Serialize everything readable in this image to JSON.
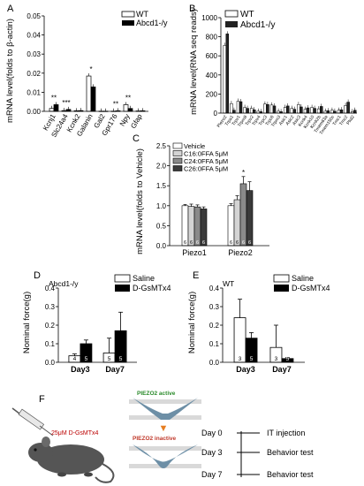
{
  "panels": {
    "A": {
      "letter": "A",
      "ylabel": "mRNA level(folds to β-actin)",
      "yticks": [
        "0.00",
        "0.01",
        "0.02",
        "0.03",
        "0.04",
        "0.05"
      ],
      "legend": [
        "WT",
        "Abcd1-/y"
      ],
      "stars": [
        "**",
        "***",
        "*",
        "**",
        "**"
      ]
    },
    "B": {
      "letter": "B",
      "ylabel": "mRNA level(RNA seq reads)",
      "yticks": [
        "0",
        "200",
        "400",
        "600",
        "800",
        "1000"
      ],
      "legend": [
        "WT",
        "Abcd1-/y"
      ],
      "stars": [
        "**"
      ]
    },
    "C": {
      "letter": "C",
      "ylabel": "mRNA level(folds to Vehicle)",
      "yticks": [
        "0.0",
        "0.5",
        "1.0",
        "1.5",
        "2.0",
        "2.5"
      ],
      "legend": [
        "Vehicle",
        "C16:0FFA 5μM",
        "C24:0FFA 5μM",
        "C26:0FFA 5μM"
      ],
      "stars": [
        "*"
      ],
      "n_labels": [
        "6",
        "6",
        "6",
        "6",
        "6",
        "6",
        "6",
        "6"
      ]
    },
    "D": {
      "letter": "D",
      "subtitle": "Abcd1-/y",
      "ylabel": "Nominal force(g)",
      "yticks": [
        "0.0",
        "0.1",
        "0.2",
        "0.3",
        "0.4"
      ],
      "legend": [
        "Saline",
        "D-GsMTx4"
      ],
      "n_labels": [
        "4",
        "5",
        "5",
        "5"
      ]
    },
    "E": {
      "letter": "E",
      "subtitle": "WT",
      "ylabel": "Nominal force(g)",
      "yticks": [
        "0.0",
        "0.1",
        "0.2",
        "0.3",
        "0.4"
      ],
      "legend": [
        "Saline",
        "D-GsMTx4"
      ],
      "n_labels": [
        "3",
        "5",
        "3",
        "5"
      ]
    },
    "F": {
      "letter": "F",
      "dose": "25μM D-GsMTx4",
      "active": "PIEZO2 active",
      "inactive": "PIEZO2 inactive",
      "timeline": [
        {
          "day": "Day 0",
          "event": "IT injection"
        },
        {
          "day": "Day 3",
          "event": "Behavior test"
        },
        {
          "day": "Day 7",
          "event": "Behavior test"
        }
      ]
    }
  },
  "chart_data": [
    {
      "panel": "A",
      "type": "bar",
      "categories": [
        "Kcnj1",
        "Slc24a4",
        "Kcnk2",
        "Galanin",
        "Gal2",
        "Gpr176",
        "Npy",
        "Gfap"
      ],
      "series": [
        {
          "name": "WT",
          "values": [
            0.0015,
            0.0004,
            0.0003,
            0.0185,
            0.0001,
            0.0001,
            0.0035,
            0.0002
          ]
        },
        {
          "name": "Abcd1-/y",
          "values": [
            0.0035,
            0.001,
            0.0004,
            0.0128,
            0.0001,
            0.0003,
            0.0015,
            0.0003
          ]
        }
      ],
      "ylim": [
        0,
        0.05
      ]
    },
    {
      "panel": "B",
      "type": "bar",
      "categories": [
        "Piezo2",
        "Trpa1",
        "Trpv1",
        "Trpm8",
        "Trpv2",
        "Trpv4",
        "Trpc3",
        "Trpc6",
        "Trpm3",
        "Asic1",
        "Asic2",
        "Asic3",
        "Kcnk4",
        "Kcnk10",
        "Kcnk2b",
        "Tmem63a",
        "Tmem150c",
        "Tmc1",
        "Tmc2",
        "Pkd2"
      ],
      "series": [
        {
          "name": "WT",
          "values": [
            710,
            100,
            125,
            60,
            50,
            20,
            95,
            85,
            20,
            60,
            50,
            90,
            40,
            60,
            45,
            20,
            30,
            30,
            80,
            15
          ]
        },
        {
          "name": "Abcd1-/y",
          "values": [
            830,
            30,
            120,
            50,
            35,
            15,
            90,
            75,
            15,
            75,
            40,
            65,
            55,
            50,
            70,
            25,
            20,
            35,
            115,
            30
          ]
        }
      ],
      "ylim": [
        0,
        1000
      ]
    },
    {
      "panel": "C",
      "type": "bar",
      "categories": [
        "Piezo1",
        "Piezo2"
      ],
      "series": [
        {
          "name": "Vehicle",
          "values": [
            1.0,
            1.0
          ]
        },
        {
          "name": "C16:0FFA 5μM",
          "values": [
            0.98,
            1.15
          ]
        },
        {
          "name": "C24:0FFA 5μM",
          "values": [
            0.97,
            1.55
          ]
        },
        {
          "name": "C26:0FFA 5μM",
          "values": [
            0.92,
            1.38
          ]
        }
      ],
      "errors": [
        [
          0.03,
          0.05
        ],
        [
          0.06,
          0.1
        ],
        [
          0.05,
          0.18
        ],
        [
          0.05,
          0.22
        ]
      ],
      "ylim": [
        0,
        2.5
      ]
    },
    {
      "panel": "D",
      "type": "bar",
      "categories": [
        "Day3",
        "Day7"
      ],
      "series": [
        {
          "name": "Saline",
          "values": [
            0.035,
            0.05
          ]
        },
        {
          "name": "D-GsMTx4",
          "values": [
            0.1,
            0.17
          ]
        }
      ],
      "errors": [
        [
          0.01,
          0.02
        ],
        [
          0.08,
          0.1
        ]
      ],
      "ylim": [
        0,
        0.4
      ]
    },
    {
      "panel": "E",
      "type": "bar",
      "categories": [
        "Day3",
        "Day7"
      ],
      "series": [
        {
          "name": "Saline",
          "values": [
            0.24,
            0.08
          ]
        },
        {
          "name": "D-GsMTx4",
          "values": [
            0.13,
            0.02
          ]
        }
      ],
      "errors": [
        [
          0.1,
          0.03
        ],
        [
          0.12,
          0.005
        ]
      ],
      "ylim": [
        0,
        0.4
      ]
    }
  ]
}
